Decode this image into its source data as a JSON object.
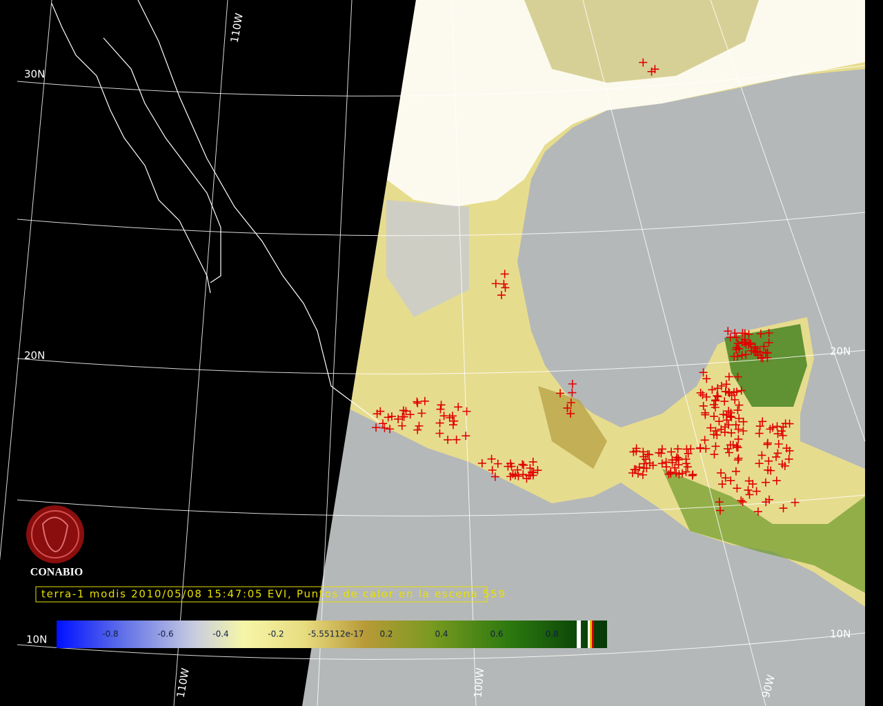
{
  "graticule": {
    "lat_labels_left": [
      "30N",
      "20N",
      "10N"
    ],
    "lat_labels_right": [
      "20N",
      "10N"
    ],
    "lon_labels_top": [
      "110W"
    ],
    "lon_labels_bottom": [
      "110W",
      "100W",
      "90W"
    ]
  },
  "logo": {
    "text": "CONABIO"
  },
  "caption": "terra-1 modis 2010/05/08 15:47:05 EVI, Puntos de calor en la escena 559",
  "colorbar": {
    "labels": [
      "-0.8",
      "-0.6",
      "-0.4",
      "-0.2",
      "-5.55112e-17",
      "0.2",
      "0.4",
      "0.6",
      "0.8"
    ]
  }
}
